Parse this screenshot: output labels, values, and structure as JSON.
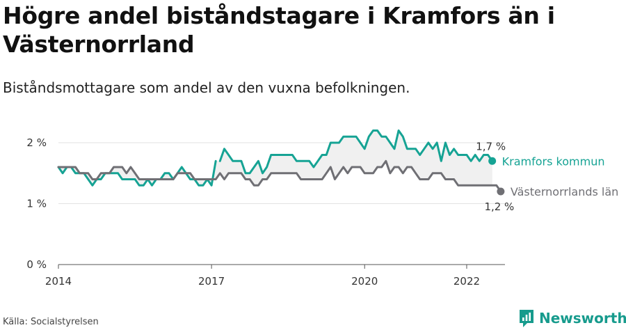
{
  "title": "Högre andel biståndstagare i Kramfors än i Västernorrland",
  "subtitle": "Biståndsmottagare som andel av den vuxna befolkningen.",
  "source": "Källa: Socialstyrelsen",
  "brand": {
    "name": "Newsworthy",
    "icon": "newsworthy-logo-icon",
    "color": "#179b8d"
  },
  "chart_data": {
    "type": "line",
    "ylim": [
      0,
      2.4
    ],
    "xlim": [
      2014,
      2022.75
    ],
    "y_ticks": [
      {
        "value": 0,
        "label": "0 %"
      },
      {
        "value": 1,
        "label": "1 %"
      },
      {
        "value": 2,
        "label": "2 %"
      }
    ],
    "x_ticks": [
      {
        "value": 2014,
        "label": "2014"
      },
      {
        "value": 2017,
        "label": "2017"
      },
      {
        "value": 2020,
        "label": "2020"
      },
      {
        "value": 2022,
        "label": "2022"
      }
    ],
    "grid": true,
    "band_between_series": true,
    "series": [
      {
        "name": "Kramfors kommun",
        "color": "#16a394",
        "end_label": "1,7 %",
        "segments": [
          {
            "start": "2014-01",
            "values": [
              1.6,
              1.5,
              1.6,
              1.6,
              1.5,
              1.5,
              1.5,
              1.4,
              1.3,
              1.4,
              1.4,
              1.5,
              1.5,
              1.5,
              1.5,
              1.4,
              1.4,
              1.4,
              1.4,
              1.3,
              1.3,
              1.4,
              1.3,
              1.4,
              1.4,
              1.5,
              1.5,
              1.4,
              1.5,
              1.6,
              1.5,
              1.4,
              1.4,
              1.3,
              1.3,
              1.4,
              1.3,
              1.7
            ]
          },
          {
            "start": "2017-03",
            "values": [
              1.7,
              1.9,
              1.8,
              1.7,
              1.7,
              1.7,
              1.5,
              1.5,
              1.6,
              1.7,
              1.5,
              1.6,
              1.8,
              1.8,
              1.8,
              1.8,
              1.8,
              1.8,
              1.7,
              1.7,
              1.7,
              1.7,
              1.6,
              1.7,
              1.8,
              1.8,
              2.0,
              2.0,
              2.0,
              2.1,
              2.1,
              2.1,
              2.1,
              2.0,
              1.9,
              2.1,
              2.2,
              2.2,
              2.1,
              2.1,
              2.0,
              1.9,
              2.2,
              2.1,
              1.9,
              1.9,
              1.9,
              1.8,
              1.9,
              2.0,
              1.9,
              2.0,
              1.7,
              2.0,
              1.8,
              1.9,
              1.8,
              1.8,
              1.8,
              1.7,
              1.8,
              1.7,
              1.8,
              1.8,
              1.7
            ]
          }
        ]
      },
      {
        "name": "Västernorrlands län",
        "color": "#6f6f74",
        "end_label": "1,2 %",
        "segments": [
          {
            "start": "2014-01",
            "values": [
              1.6,
              1.6,
              1.6,
              1.6,
              1.6,
              1.5,
              1.5,
              1.5,
              1.4,
              1.4,
              1.5,
              1.5,
              1.5,
              1.6,
              1.6,
              1.6,
              1.5,
              1.6,
              1.5,
              1.4,
              1.4,
              1.4,
              1.4,
              1.4,
              1.4,
              1.4,
              1.4,
              1.4,
              1.5,
              1.5,
              1.5,
              1.5,
              1.4,
              1.4,
              1.4,
              1.4,
              1.4,
              1.4,
              1.5,
              1.4,
              1.5,
              1.5,
              1.5,
              1.5,
              1.4,
              1.4,
              1.3,
              1.3,
              1.4,
              1.4,
              1.5,
              1.5,
              1.5,
              1.5,
              1.5,
              1.5,
              1.5,
              1.4,
              1.4,
              1.4,
              1.4,
              1.4,
              1.4,
              1.5,
              1.6,
              1.4,
              1.5,
              1.6,
              1.5,
              1.6,
              1.6,
              1.6,
              1.5,
              1.5,
              1.5,
              1.6,
              1.6,
              1.7,
              1.5,
              1.6,
              1.6,
              1.5,
              1.6,
              1.6,
              1.5,
              1.4,
              1.4,
              1.4,
              1.5,
              1.5,
              1.5,
              1.4,
              1.4,
              1.4,
              1.3,
              1.3,
              1.3,
              1.3,
              1.3,
              1.3,
              1.3,
              1.3,
              1.3,
              1.3,
              1.2
            ]
          }
        ]
      }
    ]
  }
}
